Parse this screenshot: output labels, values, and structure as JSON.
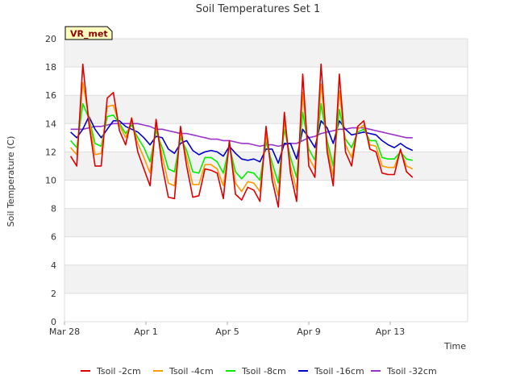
{
  "chart_data": {
    "type": "line",
    "title": "Soil Temperatures Set 1",
    "xlabel": "Time",
    "ylabel": "Soil Temperature (C)",
    "badge": "VR_met",
    "xlim": [
      0,
      19.8
    ],
    "ylim": [
      0,
      20
    ],
    "yticks": [
      0,
      2,
      4,
      6,
      8,
      10,
      12,
      14,
      16,
      18,
      20
    ],
    "xticks": [
      {
        "value": 0,
        "label": "Mar 28"
      },
      {
        "value": 4,
        "label": "Apr 1"
      },
      {
        "value": 8,
        "label": "Apr 5"
      },
      {
        "value": 12,
        "label": "Apr 9"
      },
      {
        "value": 16,
        "label": "Apr 13"
      }
    ],
    "x_unit": "days since Mar 28",
    "grid": true,
    "legend_position": "bottom",
    "series": [
      {
        "name": "Tsoil -2cm",
        "color": "#dd0000",
        "x": [
          0.3,
          0.6,
          0.9,
          1.2,
          1.5,
          1.8,
          2.1,
          2.4,
          2.7,
          3.0,
          3.3,
          3.6,
          3.9,
          4.2,
          4.5,
          4.8,
          5.1,
          5.4,
          5.7,
          6.0,
          6.3,
          6.6,
          6.9,
          7.2,
          7.5,
          7.8,
          8.1,
          8.4,
          8.7,
          9.0,
          9.3,
          9.6,
          9.9,
          10.2,
          10.5,
          10.8,
          11.1,
          11.4,
          11.7,
          12.0,
          12.3,
          12.6,
          12.9,
          13.2,
          13.5,
          13.8,
          14.1,
          14.4,
          14.7,
          15.0,
          15.3,
          15.6,
          15.9,
          16.2,
          16.5,
          16.8,
          17.1
        ],
        "y": [
          11.7,
          11.0,
          18.2,
          14.0,
          11.0,
          11.0,
          15.8,
          16.2,
          13.5,
          12.5,
          14.4,
          12.0,
          10.8,
          9.6,
          14.3,
          11.0,
          8.8,
          8.7,
          13.8,
          11.0,
          8.8,
          8.9,
          10.8,
          10.7,
          10.5,
          8.7,
          12.8,
          9.0,
          8.6,
          9.5,
          9.3,
          8.5,
          13.8,
          10.0,
          8.1,
          14.8,
          10.5,
          8.5,
          17.5,
          11.0,
          10.2,
          18.2,
          12.0,
          9.6,
          17.5,
          12.0,
          11.0,
          13.8,
          14.2,
          12.2,
          12.0,
          10.5,
          10.4,
          10.4,
          12.2,
          10.6,
          10.2
        ]
      },
      {
        "name": "Tsoil -4cm",
        "color": "#ff9900",
        "x": [
          0.3,
          0.6,
          0.9,
          1.2,
          1.5,
          1.8,
          2.1,
          2.4,
          2.7,
          3.0,
          3.3,
          3.6,
          3.9,
          4.2,
          4.5,
          4.8,
          5.1,
          5.4,
          5.7,
          6.0,
          6.3,
          6.6,
          6.9,
          7.2,
          7.5,
          7.8,
          8.1,
          8.4,
          8.7,
          9.0,
          9.3,
          9.6,
          9.9,
          10.2,
          10.5,
          10.8,
          11.1,
          11.4,
          11.7,
          12.0,
          12.3,
          12.6,
          12.9,
          13.2,
          13.5,
          13.8,
          14.1,
          14.4,
          14.7,
          15.0,
          15.3,
          15.6,
          15.9,
          16.2,
          16.5,
          16.8,
          17.1
        ],
        "y": [
          12.3,
          11.8,
          16.9,
          14.4,
          11.8,
          11.9,
          15.2,
          15.3,
          13.9,
          13.0,
          14.2,
          12.6,
          11.6,
          10.5,
          14.0,
          11.7,
          9.8,
          9.6,
          13.4,
          11.6,
          9.7,
          9.7,
          11.1,
          11.1,
          10.8,
          9.6,
          12.5,
          9.8,
          9.2,
          9.9,
          9.8,
          9.2,
          13.2,
          10.6,
          8.9,
          14.2,
          11.0,
          9.3,
          16.2,
          11.6,
          10.8,
          16.8,
          12.4,
          10.3,
          16.3,
          12.5,
          11.6,
          13.6,
          13.9,
          12.5,
          12.4,
          11.0,
          10.9,
          10.9,
          12.1,
          11.0,
          10.8
        ]
      },
      {
        "name": "Tsoil -8cm",
        "color": "#00ee00",
        "x": [
          0.3,
          0.6,
          0.9,
          1.2,
          1.5,
          1.8,
          2.1,
          2.4,
          2.7,
          3.0,
          3.3,
          3.6,
          3.9,
          4.2,
          4.5,
          4.8,
          5.1,
          5.4,
          5.7,
          6.0,
          6.3,
          6.6,
          6.9,
          7.2,
          7.5,
          7.8,
          8.1,
          8.4,
          8.7,
          9.0,
          9.3,
          9.6,
          9.9,
          10.2,
          10.5,
          10.8,
          11.1,
          11.4,
          11.7,
          12.0,
          12.3,
          12.6,
          12.9,
          13.2,
          13.5,
          13.8,
          14.1,
          14.4,
          14.7,
          15.0,
          15.3,
          15.6,
          15.9,
          16.2,
          16.5,
          16.8,
          17.1
        ],
        "y": [
          12.8,
          12.3,
          15.4,
          14.4,
          12.6,
          12.4,
          14.5,
          14.6,
          14.0,
          13.3,
          13.9,
          13.0,
          12.3,
          11.3,
          13.5,
          12.3,
          10.8,
          10.6,
          13.0,
          12.1,
          10.6,
          10.5,
          11.6,
          11.6,
          11.3,
          10.5,
          12.4,
          10.6,
          10.1,
          10.6,
          10.5,
          10.0,
          12.7,
          11.2,
          9.8,
          13.6,
          11.6,
          10.2,
          14.8,
          12.2,
          11.4,
          15.4,
          12.8,
          11.0,
          15.0,
          12.9,
          12.3,
          13.4,
          13.6,
          12.8,
          12.8,
          11.6,
          11.5,
          11.5,
          12.0,
          11.5,
          11.4
        ]
      },
      {
        "name": "Tsoil -16cm",
        "color": "#0000cc",
        "x": [
          0.3,
          0.6,
          0.9,
          1.2,
          1.5,
          1.8,
          2.1,
          2.4,
          2.7,
          3.0,
          3.3,
          3.6,
          3.9,
          4.2,
          4.5,
          4.8,
          5.1,
          5.4,
          5.7,
          6.0,
          6.3,
          6.6,
          6.9,
          7.2,
          7.5,
          7.8,
          8.1,
          8.4,
          8.7,
          9.0,
          9.3,
          9.6,
          9.9,
          10.2,
          10.5,
          10.8,
          11.1,
          11.4,
          11.7,
          12.0,
          12.3,
          12.6,
          12.9,
          13.2,
          13.5,
          13.8,
          14.1,
          14.4,
          14.7,
          15.0,
          15.3,
          15.6,
          15.9,
          16.2,
          16.5,
          16.8,
          17.1
        ],
        "y": [
          13.4,
          13.0,
          13.6,
          14.5,
          13.6,
          13.0,
          13.6,
          14.2,
          14.2,
          13.8,
          13.6,
          13.4,
          13.0,
          12.5,
          13.1,
          13.0,
          12.2,
          11.9,
          12.6,
          12.8,
          12.1,
          11.8,
          12.0,
          12.1,
          12.0,
          11.7,
          12.4,
          11.9,
          11.5,
          11.4,
          11.5,
          11.3,
          12.2,
          12.2,
          11.2,
          12.6,
          12.6,
          11.5,
          13.6,
          13.0,
          12.3,
          14.2,
          13.7,
          12.6,
          14.2,
          13.6,
          13.2,
          13.3,
          13.4,
          13.3,
          13.2,
          12.8,
          12.5,
          12.3,
          12.6,
          12.3,
          12.1
        ]
      },
      {
        "name": "Tsoil -32cm",
        "color": "#9933cc",
        "x": [
          0.3,
          0.6,
          0.9,
          1.2,
          1.5,
          1.8,
          2.1,
          2.4,
          2.7,
          3.0,
          3.3,
          3.6,
          3.9,
          4.2,
          4.5,
          4.8,
          5.1,
          5.4,
          5.7,
          6.0,
          6.3,
          6.6,
          6.9,
          7.2,
          7.5,
          7.8,
          8.1,
          8.4,
          8.7,
          9.0,
          9.3,
          9.6,
          9.9,
          10.2,
          10.5,
          10.8,
          11.1,
          11.4,
          11.7,
          12.0,
          12.3,
          12.6,
          12.9,
          13.2,
          13.5,
          13.8,
          14.1,
          14.4,
          14.7,
          15.0,
          15.3,
          15.6,
          15.9,
          16.2,
          16.5,
          16.8,
          17.1
        ],
        "y": [
          13.6,
          13.6,
          13.6,
          13.7,
          13.8,
          13.8,
          13.9,
          14.0,
          14.0,
          14.0,
          14.0,
          14.0,
          13.9,
          13.8,
          13.6,
          13.6,
          13.5,
          13.4,
          13.3,
          13.3,
          13.2,
          13.1,
          13.0,
          12.9,
          12.9,
          12.8,
          12.8,
          12.7,
          12.6,
          12.6,
          12.5,
          12.4,
          12.5,
          12.5,
          12.4,
          12.5,
          12.6,
          12.6,
          12.8,
          13.0,
          13.1,
          13.3,
          13.4,
          13.5,
          13.6,
          13.6,
          13.7,
          13.7,
          13.7,
          13.6,
          13.5,
          13.4,
          13.3,
          13.2,
          13.1,
          13.0,
          13.0
        ]
      }
    ]
  }
}
